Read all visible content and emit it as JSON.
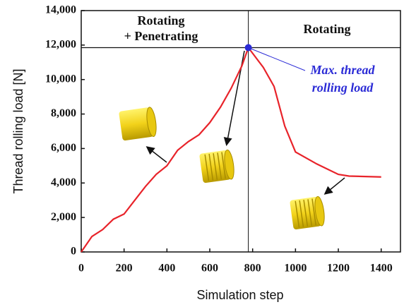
{
  "chart_data": {
    "type": "line",
    "x_label": "Simulation step",
    "y_label": "Thread rolling load [N]",
    "x": [
      0,
      50,
      100,
      150,
      200,
      250,
      300,
      350,
      400,
      450,
      500,
      550,
      600,
      650,
      700,
      750,
      780,
      850,
      900,
      950,
      1000,
      1100,
      1200,
      1250,
      1400
    ],
    "series": [
      {
        "color": "#e8232a",
        "values": [
          0,
          900,
          1300,
          1900,
          2200,
          3000,
          3800,
          4500,
          5000,
          5900,
          6400,
          6800,
          7500,
          8400,
          9500,
          10800,
          11850,
          10700,
          9600,
          7300,
          5800,
          5100,
          4500,
          4400,
          4350
        ]
      }
    ],
    "peak": {
      "x": 780,
      "y": 11850,
      "color": "#2b2bd6"
    },
    "xlim": [
      0,
      1490
    ],
    "ylim": [
      0,
      14000
    ],
    "xticks": [
      0,
      200,
      400,
      600,
      800,
      1000,
      1200,
      1400
    ],
    "yticks": [
      0,
      {
        "value": 2000,
        "label": "2,000"
      },
      {
        "value": 4000,
        "label": "4,000"
      },
      {
        "value": 6000,
        "label": "6,000"
      },
      {
        "value": 8000,
        "label": "8,000"
      },
      {
        "value": 10000,
        "label": "10,000"
      },
      {
        "value": 12000,
        "label": "12,000"
      },
      {
        "value": 14000,
        "label": "14,000"
      }
    ],
    "annotations": {
      "left_region": [
        "Rotating",
        "+ Penetrating"
      ],
      "right_region": "Rotating",
      "peak_label": [
        "Max. thread",
        "rolling load"
      ]
    }
  }
}
